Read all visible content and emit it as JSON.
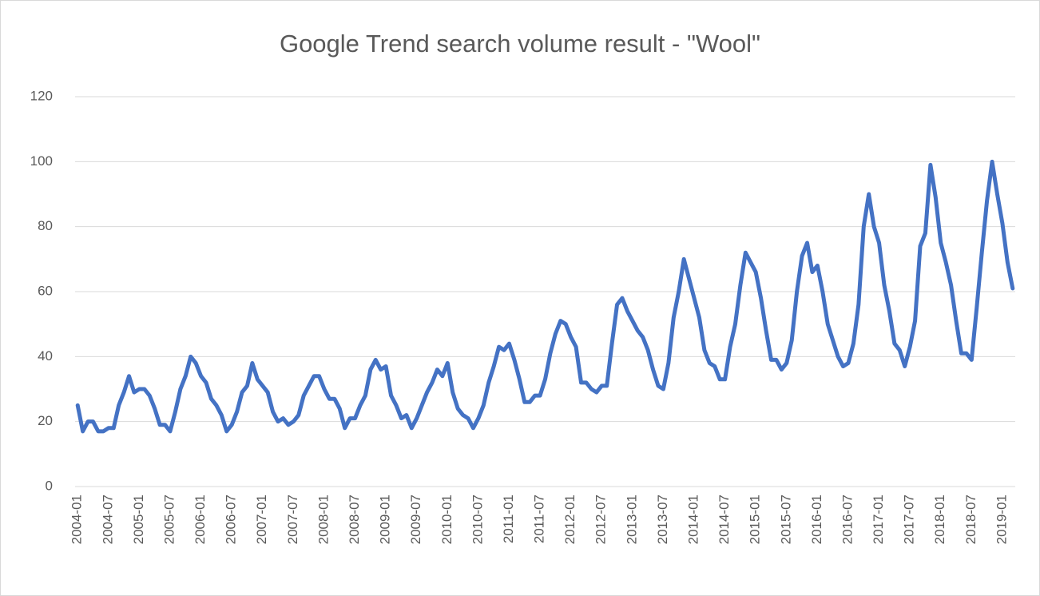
{
  "chart_data": {
    "type": "line",
    "title": "Google Trend search volume result - \"Wool\"",
    "categories": [
      "2004-01",
      null,
      null,
      null,
      null,
      null,
      "2004-07",
      null,
      null,
      null,
      null,
      null,
      "2005-01",
      null,
      null,
      null,
      null,
      null,
      "2005-07",
      null,
      null,
      null,
      null,
      null,
      "2006-01",
      null,
      null,
      null,
      null,
      null,
      "2006-07",
      null,
      null,
      null,
      null,
      null,
      "2007-01",
      null,
      null,
      null,
      null,
      null,
      "2007-07",
      null,
      null,
      null,
      null,
      null,
      "2008-01",
      null,
      null,
      null,
      null,
      null,
      "2008-07",
      null,
      null,
      null,
      null,
      null,
      "2009-01",
      null,
      null,
      null,
      null,
      null,
      "2009-07",
      null,
      null,
      null,
      null,
      null,
      "2010-01",
      null,
      null,
      null,
      null,
      null,
      "2010-07",
      null,
      null,
      null,
      null,
      null,
      "2011-01",
      null,
      null,
      null,
      null,
      null,
      "2011-07",
      null,
      null,
      null,
      null,
      null,
      "2012-01",
      null,
      null,
      null,
      null,
      null,
      "2012-07",
      null,
      null,
      null,
      null,
      null,
      "2013-01",
      null,
      null,
      null,
      null,
      null,
      "2013-07",
      null,
      null,
      null,
      null,
      null,
      "2014-01",
      null,
      null,
      null,
      null,
      null,
      "2014-07",
      null,
      null,
      null,
      null,
      null,
      "2015-01",
      null,
      null,
      null,
      null,
      null,
      "2015-07",
      null,
      null,
      null,
      null,
      null,
      "2016-01",
      null,
      null,
      null,
      null,
      null,
      "2016-07",
      null,
      null,
      null,
      null,
      null,
      "2017-01",
      null,
      null,
      null,
      null,
      null,
      "2017-07",
      null,
      null,
      null,
      null,
      null,
      "2018-01",
      null,
      null,
      null,
      null,
      null,
      "2018-07",
      null,
      null,
      null,
      null,
      null,
      "2019-01",
      null,
      null
    ],
    "values": [
      25,
      17,
      20,
      20,
      17,
      17,
      18,
      18,
      25,
      29,
      34,
      29,
      30,
      30,
      28,
      24,
      19,
      19,
      17,
      23,
      30,
      34,
      40,
      38,
      34,
      32,
      27,
      25,
      22,
      17,
      19,
      23,
      29,
      31,
      38,
      33,
      31,
      29,
      23,
      20,
      21,
      19,
      20,
      22,
      28,
      31,
      34,
      34,
      30,
      27,
      27,
      24,
      18,
      21,
      21,
      25,
      28,
      36,
      39,
      36,
      37,
      28,
      25,
      21,
      22,
      18,
      21,
      25,
      29,
      32,
      36,
      34,
      38,
      29,
      24,
      22,
      21,
      18,
      21,
      25,
      32,
      37,
      43,
      42,
      44,
      39,
      33,
      26,
      26,
      28,
      28,
      33,
      41,
      47,
      51,
      50,
      46,
      43,
      32,
      32,
      30,
      29,
      31,
      31,
      44,
      56,
      58,
      54,
      51,
      48,
      46,
      42,
      36,
      31,
      30,
      38,
      52,
      60,
      70,
      64,
      58,
      52,
      42,
      38,
      37,
      33,
      33,
      43,
      50,
      62,
      72,
      69,
      66,
      58,
      48,
      39,
      39,
      36,
      38,
      45,
      60,
      71,
      75,
      66,
      68,
      60,
      50,
      45,
      40,
      37,
      38,
      44,
      56,
      80,
      90,
      80,
      75,
      62,
      54,
      44,
      42,
      37,
      43,
      51,
      74,
      78,
      99,
      89,
      75,
      69,
      62,
      51,
      41,
      41,
      39,
      55,
      72,
      88,
      100,
      90,
      81,
      69,
      61
    ],
    "color": "#4472c4",
    "ylim": [
      0,
      120
    ],
    "yticks": [
      0,
      20,
      40,
      60,
      80,
      100,
      120
    ],
    "grid": true
  }
}
